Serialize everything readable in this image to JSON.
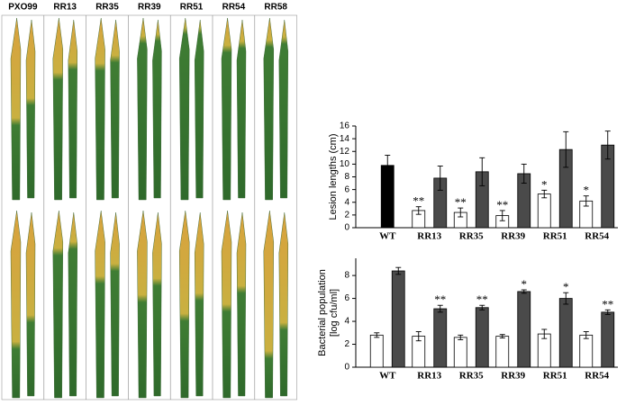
{
  "photo_panel": {
    "labels": [
      "PXO99",
      "RR13",
      "RR35",
      "RR39",
      "RR51",
      "RR54",
      "RR58"
    ]
  },
  "chart_data": [
    {
      "type": "bar",
      "y_label": "Lesion lengths (cm)",
      "categories": [
        "WT",
        "RR13",
        "RR35",
        "RR39",
        "RR51",
        "RR54"
      ],
      "series": [
        {
          "color": "#000000",
          "values": [
            9.8,
            null,
            null,
            null,
            null,
            null
          ],
          "errors": [
            1.6,
            null,
            null,
            null,
            null,
            null
          ],
          "annotations": [
            null,
            null,
            null,
            null,
            null,
            null
          ]
        },
        {
          "color": "#ffffff",
          "values": [
            null,
            2.7,
            2.4,
            1.9,
            5.3,
            4.2
          ],
          "errors": [
            null,
            0.6,
            0.7,
            0.8,
            0.6,
            0.8
          ],
          "annotations": [
            null,
            "**",
            "**",
            "**",
            "*",
            "*"
          ]
        },
        {
          "color": "#4a4a4a",
          "values": [
            null,
            7.8,
            8.8,
            8.5,
            12.3,
            13.0
          ],
          "errors": [
            null,
            1.9,
            2.2,
            1.5,
            2.8,
            2.2
          ],
          "annotations": [
            null,
            null,
            null,
            null,
            null,
            null
          ]
        }
      ],
      "ylim": [
        0,
        16
      ],
      "yticks": [
        0,
        2,
        4,
        6,
        8,
        10,
        12,
        14,
        16
      ]
    },
    {
      "type": "bar",
      "y_label": [
        "Bacterial population",
        "[log cfu/ml]"
      ],
      "categories": [
        "WT",
        "RR13",
        "RR35",
        "RR39",
        "RR51",
        "RR54"
      ],
      "series": [
        {
          "color": "#ffffff",
          "values": [
            2.8,
            2.7,
            2.6,
            2.7,
            2.9,
            2.8
          ],
          "errors": [
            0.2,
            0.4,
            0.2,
            0.15,
            0.4,
            0.3
          ],
          "annotations": [
            null,
            null,
            null,
            null,
            null,
            null
          ]
        },
        {
          "color": "#4a4a4a",
          "values": [
            8.4,
            5.1,
            5.2,
            6.6,
            6.0,
            4.8
          ],
          "errors": [
            0.3,
            0.3,
            0.2,
            0.15,
            0.5,
            0.2
          ],
          "annotations": [
            null,
            "**",
            "**",
            "*",
            "*",
            "**"
          ]
        }
      ],
      "ylim": [
        0,
        9.5
      ],
      "yticks": [
        0,
        2,
        4,
        6,
        8
      ]
    }
  ]
}
